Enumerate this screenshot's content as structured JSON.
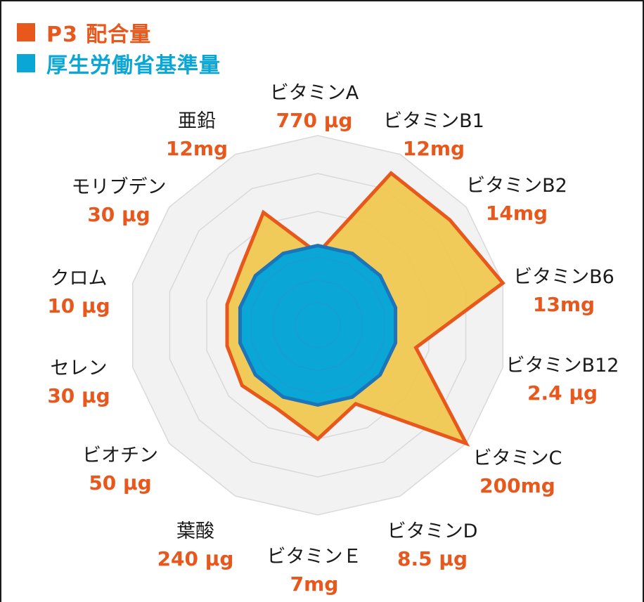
{
  "colors": {
    "p3": "#e8581c",
    "p3_fill": "#f0c850",
    "standard": "#0aa6d6",
    "standard_stroke": "#1e74b8",
    "grid": "#d9d9d9",
    "grid_fill": "#f2f2f2",
    "value_text": "#e8581c",
    "name_text": "#1a1a1a"
  },
  "chart_data": {
    "type": "radar",
    "legend_position": "top-left",
    "grid_rings": 5,
    "range": [
      0,
      1
    ],
    "axes": [
      {
        "name": "ビタミンA",
        "value": "770 μg"
      },
      {
        "name": "ビタミンB1",
        "value": "12mg"
      },
      {
        "name": "ビタミンB2",
        "value": "14mg"
      },
      {
        "name": "ビタミンB6",
        "value": "13mg"
      },
      {
        "name": "ビタミンB12",
        "value": "2.4 μg"
      },
      {
        "name": "ビタミンC",
        "value": "200mg"
      },
      {
        "name": "ビタミンD",
        "value": "8.5 μg"
      },
      {
        "name": "ビタミンＥ",
        "value": "7mg"
      },
      {
        "name": "葉酸",
        "value": "240 μg"
      },
      {
        "name": "ビオチン",
        "value": "50 μg"
      },
      {
        "name": "セレン",
        "value": "30 μg"
      },
      {
        "name": "クロム",
        "value": "10 μg"
      },
      {
        "name": "モリブデン",
        "value": "30 μg"
      },
      {
        "name": "亜鉛",
        "value": "12mg"
      }
    ],
    "series": [
      {
        "name": "P3 配合量",
        "values": [
          0.38,
          0.89,
          0.89,
          1.0,
          0.53,
          1.0,
          0.46,
          0.6,
          0.49,
          0.51,
          0.49,
          0.49,
          0.51,
          0.66
        ]
      },
      {
        "name": "厚生労働省基準量",
        "values": [
          0.42,
          0.42,
          0.42,
          0.42,
          0.42,
          0.42,
          0.42,
          0.42,
          0.42,
          0.42,
          0.42,
          0.42,
          0.42,
          0.42
        ]
      }
    ]
  }
}
